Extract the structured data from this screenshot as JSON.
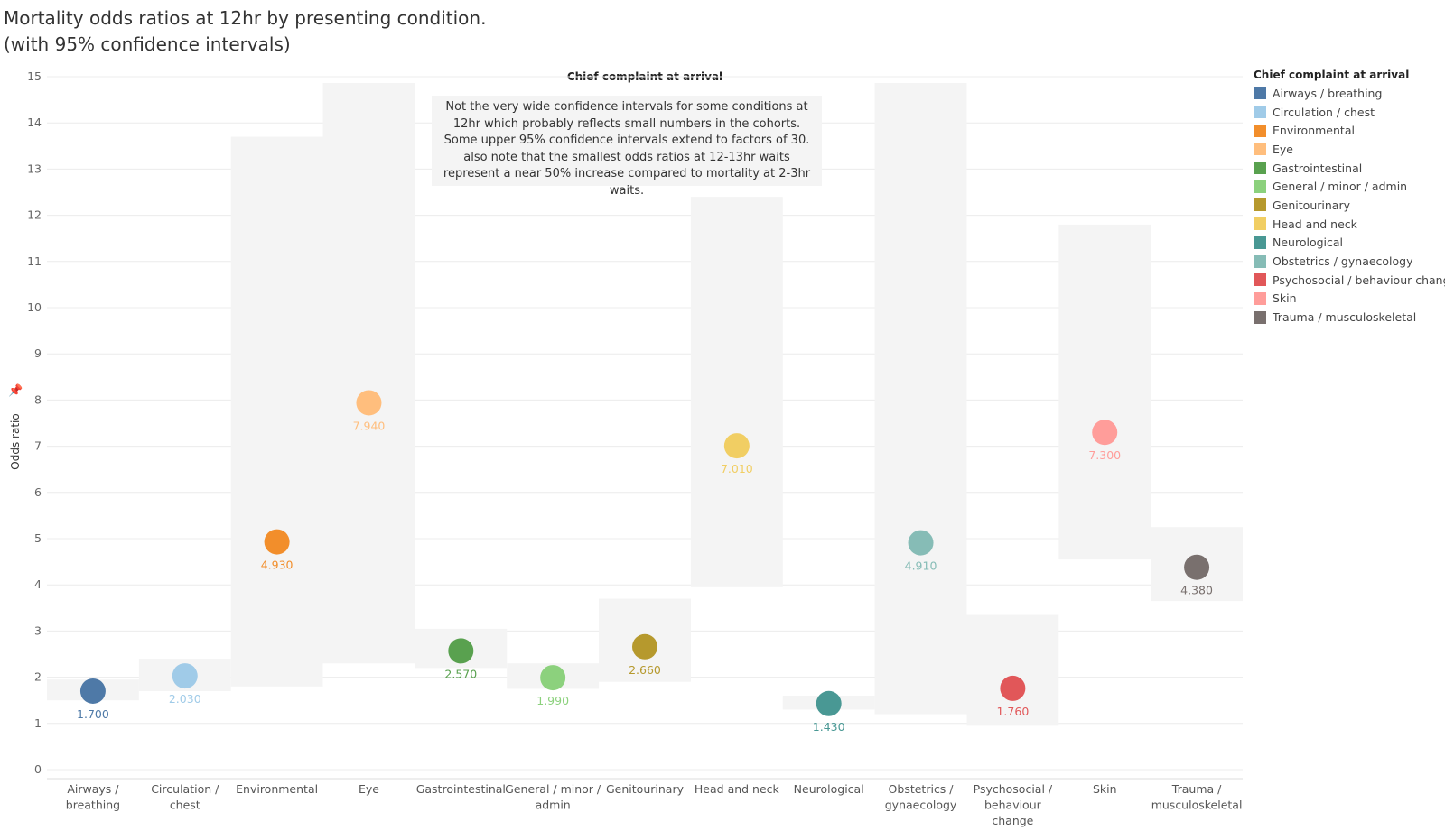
{
  "title_line1": "Mortality odds ratios at 12hr by presenting condition.",
  "title_line2": "(with 95% confidence intervals)",
  "annotation": "Not the very wide confidence intervals for some conditions at 12hr which probably reflects small numbers in the cohorts. Some upper 95% confidence intervals extend to factors of 30. also note that the smallest odds ratios at 12-13hr waits represent a near 50% increase compared to mortality at 2-3hr waits.",
  "icons": {
    "pin": "pin-icon"
  },
  "chart_data": {
    "type": "scatter",
    "column_header": "Chief complaint at arrival",
    "ylabel": "Odds ratio",
    "ylim": [
      0,
      15
    ],
    "yticks": [
      0,
      1,
      2,
      3,
      4,
      5,
      6,
      7,
      8,
      9,
      10,
      11,
      12,
      13,
      14,
      15
    ],
    "grid": true,
    "legend_position": "right",
    "legend_title": "Chief complaint at arrival",
    "categories": [
      {
        "name": "Airways / breathing",
        "label_lines": [
          "Airways /",
          "breathing"
        ],
        "value": 1.7,
        "label": "1.700",
        "ci": [
          1.5,
          1.95
        ],
        "color": "#4e79a7"
      },
      {
        "name": "Circulation / chest",
        "label_lines": [
          "Circulation /",
          "chest"
        ],
        "value": 2.03,
        "label": "2.030",
        "ci": [
          1.7,
          2.4
        ],
        "color": "#a0cbe8"
      },
      {
        "name": "Environmental",
        "label_lines": [
          "Environmental"
        ],
        "value": 4.93,
        "label": "4.930",
        "ci": [
          1.8,
          13.7
        ],
        "color": "#f28e2b"
      },
      {
        "name": "Eye",
        "label_lines": [
          "Eye"
        ],
        "value": 7.94,
        "label": "7.940",
        "ci": [
          2.3,
          15.2
        ],
        "color": "#ffbe7d"
      },
      {
        "name": "Gastrointestinal",
        "label_lines": [
          "Gastrointestinal"
        ],
        "value": 2.57,
        "label": "2.570",
        "ci": [
          2.2,
          3.05
        ],
        "color": "#59a14f"
      },
      {
        "name": "General / minor / admin",
        "label_lines": [
          "General / minor /",
          "admin"
        ],
        "value": 1.99,
        "label": "1.990",
        "ci": [
          1.75,
          2.3
        ],
        "color": "#8cd17d"
      },
      {
        "name": "Genitourinary",
        "label_lines": [
          "Genitourinary"
        ],
        "value": 2.66,
        "label": "2.660",
        "ci": [
          1.9,
          3.7
        ],
        "color": "#b6992d"
      },
      {
        "name": "Head and neck",
        "label_lines": [
          "Head and neck"
        ],
        "value": 7.01,
        "label": "7.010",
        "ci": [
          3.95,
          12.4
        ],
        "color": "#f1ce63"
      },
      {
        "name": "Neurological",
        "label_lines": [
          "Neurological"
        ],
        "value": 1.43,
        "label": "1.430",
        "ci": [
          1.3,
          1.6
        ],
        "color": "#499894"
      },
      {
        "name": "Obstetrics / gynaecology",
        "label_lines": [
          "Obstetrics /",
          "gynaecology"
        ],
        "value": 4.91,
        "label": "4.910",
        "ci": [
          1.2,
          15.2
        ],
        "color": "#86bcb6"
      },
      {
        "name": "Psychosocial / behaviour change",
        "label_lines": [
          "Psychosocial /",
          "behaviour",
          "change"
        ],
        "value": 1.76,
        "label": "1.760",
        "ci": [
          0.95,
          3.35
        ],
        "color": "#e15759"
      },
      {
        "name": "Skin",
        "label_lines": [
          "Skin"
        ],
        "value": 7.3,
        "label": "7.300",
        "ci": [
          4.55,
          11.8
        ],
        "color": "#ff9d9a"
      },
      {
        "name": "Trauma / musculoskeletal",
        "label_lines": [
          "Trauma /",
          "musculoskeletal"
        ],
        "value": 4.38,
        "label": "4.380",
        "ci": [
          3.65,
          5.25
        ],
        "color": "#79706e"
      }
    ]
  }
}
